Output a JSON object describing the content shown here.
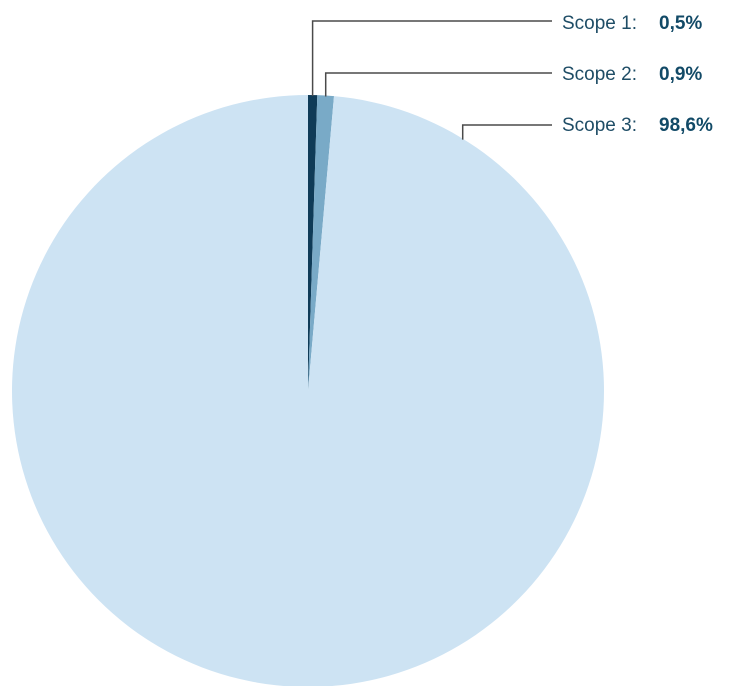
{
  "chart_data": {
    "type": "pie",
    "title": "",
    "slices": [
      {
        "label": "Scope 1:",
        "value": 0.5,
        "display": "0,5%",
        "color": "#0f3b57"
      },
      {
        "label": "Scope 2:",
        "value": 0.9,
        "display": "0,9%",
        "color": "#79aac7"
      },
      {
        "label": "Scope 3:",
        "value": 98.6,
        "display": "98,6%",
        "color": "#cde3f3"
      }
    ],
    "legend": "none",
    "start_angle": "top",
    "direction": "clockwise"
  }
}
